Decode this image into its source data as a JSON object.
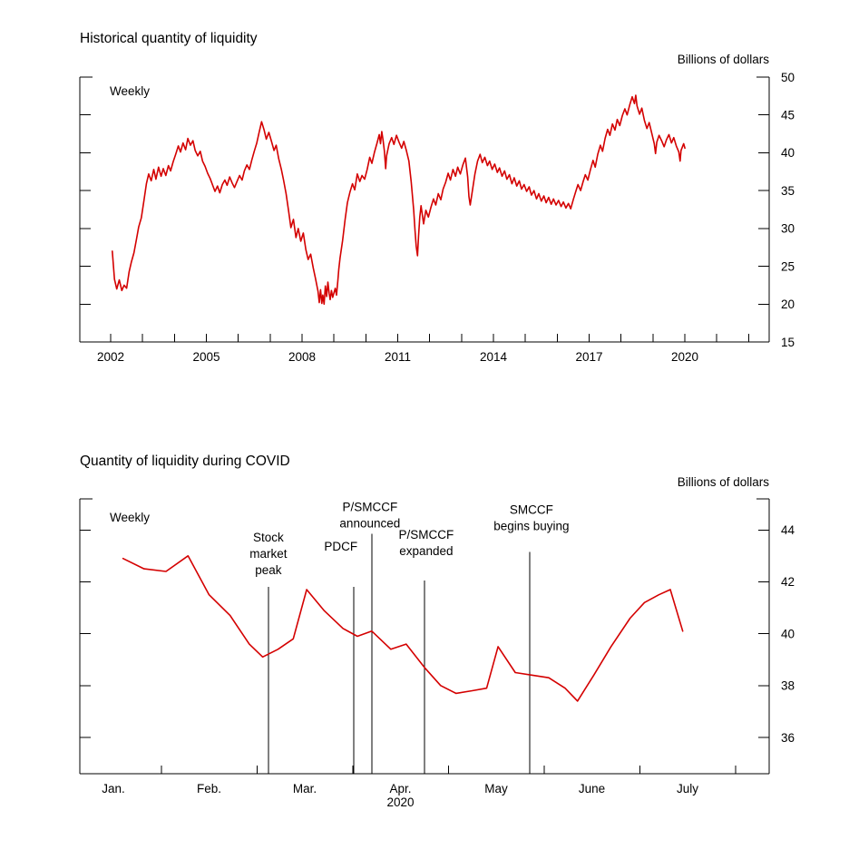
{
  "chart_data": [
    {
      "type": "line",
      "title": "Historical quantity of liquidity",
      "units_label": "Billions of dollars",
      "freq_label": "Weekly",
      "line_color": "#d40000",
      "legend_position": "none",
      "grid": false,
      "y_axis_labels_side": "right",
      "xlabel": "",
      "ylabel": "Billions of dollars",
      "xlim": [
        2001.0,
        2022.6
      ],
      "ylim": [
        15,
        50.2
      ],
      "y_ticks": [
        15,
        20,
        25,
        30,
        35,
        40,
        45,
        50
      ],
      "x_labels": [
        "2002",
        "2005",
        "2008",
        "2011",
        "2014",
        "2017",
        "2020"
      ],
      "x_label_positions": [
        2002,
        2005,
        2008,
        2011,
        2014,
        2017,
        2020
      ],
      "x_tick_positions": [
        2002,
        2003,
        2004,
        2005,
        2006,
        2007,
        2008,
        2009,
        2010,
        2011,
        2012,
        2013,
        2014,
        2015,
        2016,
        2017,
        2018,
        2019,
        2020,
        2021,
        2022
      ],
      "points": [
        [
          2002.05,
          27.0
        ],
        [
          2002.12,
          23.3
        ],
        [
          2002.19,
          22.0
        ],
        [
          2002.27,
          23.2
        ],
        [
          2002.35,
          21.8
        ],
        [
          2002.42,
          22.5
        ],
        [
          2002.5,
          22.1
        ],
        [
          2002.58,
          24.3
        ],
        [
          2002.65,
          25.6
        ],
        [
          2002.73,
          26.8
        ],
        [
          2002.81,
          28.6
        ],
        [
          2002.88,
          30.2
        ],
        [
          2002.96,
          31.4
        ],
        [
          2003.04,
          33.6
        ],
        [
          2003.12,
          35.9
        ],
        [
          2003.19,
          37.2
        ],
        [
          2003.27,
          36.3
        ],
        [
          2003.35,
          37.8
        ],
        [
          2003.42,
          36.5
        ],
        [
          2003.5,
          38.1
        ],
        [
          2003.58,
          36.9
        ],
        [
          2003.65,
          37.9
        ],
        [
          2003.73,
          37.0
        ],
        [
          2003.81,
          38.3
        ],
        [
          2003.88,
          37.6
        ],
        [
          2003.96,
          38.8
        ],
        [
          2004.04,
          39.8
        ],
        [
          2004.12,
          40.9
        ],
        [
          2004.19,
          40.1
        ],
        [
          2004.27,
          41.3
        ],
        [
          2004.35,
          40.4
        ],
        [
          2004.42,
          41.9
        ],
        [
          2004.5,
          41.0
        ],
        [
          2004.58,
          41.6
        ],
        [
          2004.65,
          40.3
        ],
        [
          2004.73,
          39.6
        ],
        [
          2004.81,
          40.2
        ],
        [
          2004.88,
          38.9
        ],
        [
          2004.96,
          38.2
        ],
        [
          2005.04,
          37.3
        ],
        [
          2005.12,
          36.6
        ],
        [
          2005.19,
          35.8
        ],
        [
          2005.27,
          34.9
        ],
        [
          2005.35,
          35.6
        ],
        [
          2005.42,
          34.7
        ],
        [
          2005.5,
          35.8
        ],
        [
          2005.58,
          36.4
        ],
        [
          2005.65,
          35.7
        ],
        [
          2005.73,
          36.8
        ],
        [
          2005.81,
          36.0
        ],
        [
          2005.88,
          35.4
        ],
        [
          2005.96,
          36.2
        ],
        [
          2006.04,
          37.0
        ],
        [
          2006.12,
          36.4
        ],
        [
          2006.19,
          37.6
        ],
        [
          2006.27,
          38.4
        ],
        [
          2006.35,
          37.8
        ],
        [
          2006.42,
          39.0
        ],
        [
          2006.5,
          40.2
        ],
        [
          2006.58,
          41.3
        ],
        [
          2006.65,
          42.6
        ],
        [
          2006.73,
          44.1
        ],
        [
          2006.81,
          43.0
        ],
        [
          2006.88,
          41.8
        ],
        [
          2006.96,
          42.7
        ],
        [
          2007.04,
          41.5
        ],
        [
          2007.12,
          40.3
        ],
        [
          2007.19,
          41.0
        ],
        [
          2007.27,
          39.2
        ],
        [
          2007.35,
          37.8
        ],
        [
          2007.42,
          36.4
        ],
        [
          2007.5,
          34.6
        ],
        [
          2007.58,
          32.3
        ],
        [
          2007.65,
          30.1
        ],
        [
          2007.73,
          31.2
        ],
        [
          2007.81,
          28.8
        ],
        [
          2007.88,
          30.0
        ],
        [
          2007.96,
          28.3
        ],
        [
          2008.04,
          29.4
        ],
        [
          2008.12,
          27.2
        ],
        [
          2008.19,
          25.9
        ],
        [
          2008.27,
          26.6
        ],
        [
          2008.35,
          24.8
        ],
        [
          2008.42,
          23.4
        ],
        [
          2008.5,
          21.7
        ],
        [
          2008.54,
          20.2
        ],
        [
          2008.58,
          21.9
        ],
        [
          2008.62,
          20.1
        ],
        [
          2008.65,
          21.2
        ],
        [
          2008.69,
          20.0
        ],
        [
          2008.73,
          22.4
        ],
        [
          2008.77,
          21.0
        ],
        [
          2008.81,
          22.9
        ],
        [
          2008.85,
          21.4
        ],
        [
          2008.88,
          20.6
        ],
        [
          2008.92,
          21.8
        ],
        [
          2008.96,
          20.9
        ],
        [
          2009.04,
          22.1
        ],
        [
          2009.08,
          21.2
        ],
        [
          2009.12,
          23.0
        ],
        [
          2009.15,
          24.6
        ],
        [
          2009.19,
          26.1
        ],
        [
          2009.27,
          28.4
        ],
        [
          2009.35,
          31.2
        ],
        [
          2009.42,
          33.4
        ],
        [
          2009.5,
          34.8
        ],
        [
          2009.58,
          35.9
        ],
        [
          2009.65,
          35.1
        ],
        [
          2009.73,
          37.2
        ],
        [
          2009.81,
          36.2
        ],
        [
          2009.88,
          37.0
        ],
        [
          2009.96,
          36.5
        ],
        [
          2010.04,
          37.8
        ],
        [
          2010.12,
          39.4
        ],
        [
          2010.19,
          38.6
        ],
        [
          2010.27,
          40.1
        ],
        [
          2010.35,
          41.3
        ],
        [
          2010.42,
          42.4
        ],
        [
          2010.46,
          41.2
        ],
        [
          2010.5,
          42.8
        ],
        [
          2010.54,
          41.6
        ],
        [
          2010.58,
          40.2
        ],
        [
          2010.62,
          37.9
        ],
        [
          2010.65,
          39.6
        ],
        [
          2010.73,
          41.2
        ],
        [
          2010.81,
          42.0
        ],
        [
          2010.88,
          41.1
        ],
        [
          2010.96,
          42.3
        ],
        [
          2011.04,
          41.4
        ],
        [
          2011.12,
          40.6
        ],
        [
          2011.19,
          41.5
        ],
        [
          2011.27,
          40.3
        ],
        [
          2011.35,
          38.9
        ],
        [
          2011.42,
          36.2
        ],
        [
          2011.5,
          32.4
        ],
        [
          2011.54,
          29.8
        ],
        [
          2011.58,
          27.6
        ],
        [
          2011.62,
          26.4
        ],
        [
          2011.65,
          28.9
        ],
        [
          2011.69,
          31.5
        ],
        [
          2011.73,
          33.0
        ],
        [
          2011.77,
          31.8
        ],
        [
          2011.81,
          30.6
        ],
        [
          2011.88,
          32.4
        ],
        [
          2011.96,
          31.5
        ],
        [
          2012.04,
          32.8
        ],
        [
          2012.12,
          33.9
        ],
        [
          2012.19,
          33.1
        ],
        [
          2012.27,
          34.6
        ],
        [
          2012.35,
          33.8
        ],
        [
          2012.42,
          35.2
        ],
        [
          2012.5,
          36.1
        ],
        [
          2012.58,
          37.3
        ],
        [
          2012.65,
          36.4
        ],
        [
          2012.73,
          37.8
        ],
        [
          2012.81,
          36.9
        ],
        [
          2012.88,
          38.1
        ],
        [
          2012.96,
          37.2
        ],
        [
          2013.04,
          38.4
        ],
        [
          2013.12,
          39.3
        ],
        [
          2013.19,
          36.8
        ],
        [
          2013.23,
          34.2
        ],
        [
          2013.27,
          33.1
        ],
        [
          2013.35,
          35.3
        ],
        [
          2013.42,
          37.2
        ],
        [
          2013.5,
          38.9
        ],
        [
          2013.58,
          39.8
        ],
        [
          2013.65,
          38.7
        ],
        [
          2013.73,
          39.4
        ],
        [
          2013.81,
          38.3
        ],
        [
          2013.88,
          38.9
        ],
        [
          2013.96,
          37.8
        ],
        [
          2014.04,
          38.5
        ],
        [
          2014.12,
          37.4
        ],
        [
          2014.19,
          38.0
        ],
        [
          2014.27,
          36.9
        ],
        [
          2014.35,
          37.6
        ],
        [
          2014.42,
          36.5
        ],
        [
          2014.5,
          37.1
        ],
        [
          2014.58,
          35.9
        ],
        [
          2014.65,
          36.7
        ],
        [
          2014.73,
          35.6
        ],
        [
          2014.81,
          36.3
        ],
        [
          2014.88,
          35.2
        ],
        [
          2014.96,
          35.8
        ],
        [
          2015.04,
          34.9
        ],
        [
          2015.12,
          35.5
        ],
        [
          2015.19,
          34.4
        ],
        [
          2015.27,
          35.0
        ],
        [
          2015.35,
          33.9
        ],
        [
          2015.42,
          34.6
        ],
        [
          2015.5,
          33.6
        ],
        [
          2015.58,
          34.3
        ],
        [
          2015.65,
          33.4
        ],
        [
          2015.73,
          34.1
        ],
        [
          2015.81,
          33.2
        ],
        [
          2015.88,
          33.9
        ],
        [
          2015.96,
          33.1
        ],
        [
          2016.04,
          33.7
        ],
        [
          2016.12,
          32.9
        ],
        [
          2016.19,
          33.5
        ],
        [
          2016.27,
          32.7
        ],
        [
          2016.35,
          33.3
        ],
        [
          2016.42,
          32.6
        ],
        [
          2016.5,
          33.8
        ],
        [
          2016.58,
          34.9
        ],
        [
          2016.65,
          35.8
        ],
        [
          2016.73,
          35.0
        ],
        [
          2016.81,
          36.2
        ],
        [
          2016.88,
          37.1
        ],
        [
          2016.96,
          36.4
        ],
        [
          2017.04,
          37.8
        ],
        [
          2017.12,
          39.0
        ],
        [
          2017.19,
          38.1
        ],
        [
          2017.27,
          39.8
        ],
        [
          2017.35,
          41.0
        ],
        [
          2017.42,
          40.2
        ],
        [
          2017.5,
          41.9
        ],
        [
          2017.58,
          43.1
        ],
        [
          2017.65,
          42.3
        ],
        [
          2017.73,
          43.8
        ],
        [
          2017.81,
          43.0
        ],
        [
          2017.88,
          44.4
        ],
        [
          2017.96,
          43.6
        ],
        [
          2018.04,
          44.9
        ],
        [
          2018.12,
          45.8
        ],
        [
          2018.19,
          45.0
        ],
        [
          2018.27,
          46.3
        ],
        [
          2018.35,
          47.4
        ],
        [
          2018.42,
          46.5
        ],
        [
          2018.46,
          47.6
        ],
        [
          2018.5,
          46.2
        ],
        [
          2018.58,
          45.1
        ],
        [
          2018.65,
          45.9
        ],
        [
          2018.73,
          44.3
        ],
        [
          2018.81,
          43.2
        ],
        [
          2018.88,
          44.0
        ],
        [
          2018.96,
          42.6
        ],
        [
          2019.04,
          41.2
        ],
        [
          2019.08,
          39.9
        ],
        [
          2019.12,
          41.4
        ],
        [
          2019.19,
          42.3
        ],
        [
          2019.27,
          41.6
        ],
        [
          2019.35,
          40.8
        ],
        [
          2019.42,
          41.7
        ],
        [
          2019.5,
          42.4
        ],
        [
          2019.58,
          41.3
        ],
        [
          2019.65,
          42.0
        ],
        [
          2019.73,
          40.9
        ],
        [
          2019.81,
          40.1
        ],
        [
          2019.85,
          38.9
        ],
        [
          2019.88,
          40.3
        ],
        [
          2019.96,
          41.2
        ],
        [
          2020.0,
          40.6
        ]
      ]
    },
    {
      "type": "line",
      "title": "Quantity of liquidity during COVID",
      "units_label": "Billions of dollars",
      "freq_label": "Weekly",
      "line_color": "#d40000",
      "legend_position": "none",
      "grid": false,
      "y_axis_labels_side": "right",
      "xlabel": "2020",
      "ylabel": "Billions of dollars",
      "xlim": [
        -0.35,
        6.85
      ],
      "ylim": [
        34.6,
        45.2
      ],
      "y_ticks": [
        36,
        38,
        40,
        42,
        44
      ],
      "x_labels": [
        "Jan.",
        "Feb.",
        "Mar.",
        "Apr.",
        "May",
        "June",
        "July"
      ],
      "x_label_positions": [
        0,
        1,
        2,
        3,
        4,
        5,
        6
      ],
      "x_tick_positions": [
        0.5,
        1.5,
        2.5,
        3.5,
        4.5,
        5.5,
        6.5
      ],
      "year_label": "2020",
      "year_label_position": 3,
      "points": [
        [
          0.1,
          42.9
        ],
        [
          0.32,
          42.5
        ],
        [
          0.55,
          42.4
        ],
        [
          0.78,
          43.0
        ],
        [
          1.0,
          41.5
        ],
        [
          1.22,
          40.7
        ],
        [
          1.42,
          39.6
        ],
        [
          1.56,
          39.1
        ],
        [
          1.72,
          39.4
        ],
        [
          1.88,
          39.8
        ],
        [
          2.02,
          41.7
        ],
        [
          2.2,
          40.9
        ],
        [
          2.4,
          40.2
        ],
        [
          2.55,
          39.9
        ],
        [
          2.7,
          40.1
        ],
        [
          2.9,
          39.4
        ],
        [
          3.06,
          39.6
        ],
        [
          3.25,
          38.7
        ],
        [
          3.42,
          38.0
        ],
        [
          3.58,
          37.7
        ],
        [
          3.75,
          37.8
        ],
        [
          3.9,
          37.9
        ],
        [
          4.02,
          39.5
        ],
        [
          4.2,
          38.5
        ],
        [
          4.38,
          38.4
        ],
        [
          4.55,
          38.3
        ],
        [
          4.72,
          37.9
        ],
        [
          4.85,
          37.4
        ],
        [
          5.02,
          38.4
        ],
        [
          5.2,
          39.5
        ],
        [
          5.4,
          40.6
        ],
        [
          5.55,
          41.2
        ],
        [
          5.7,
          41.5
        ],
        [
          5.82,
          41.7
        ],
        [
          5.95,
          40.1
        ]
      ],
      "annotations": [
        {
          "label_lines": [
            "Stock",
            "market",
            "peak"
          ],
          "x": 1.62,
          "line_top": 41.8,
          "label_dx": 0,
          "label_gap": 14
        },
        {
          "label_lines": [
            "PDCF"
          ],
          "x": 2.51,
          "line_top": 41.8,
          "label_dx": -14,
          "label_gap": 40
        },
        {
          "label_lines": [
            "P/SMCCF",
            "announced"
          ],
          "x": 2.7,
          "line_top": 43.85,
          "label_dx": -2,
          "label_gap": 7
        },
        {
          "label_lines": [
            "P/SMCCF",
            "expanded"
          ],
          "x": 3.25,
          "line_top": 42.05,
          "label_dx": 2,
          "label_gap": 28
        },
        {
          "label_lines": [
            "SMCCF",
            "begins buying"
          ],
          "x": 4.35,
          "line_top": 43.15,
          "label_dx": 2,
          "label_gap": 24
        }
      ]
    }
  ]
}
